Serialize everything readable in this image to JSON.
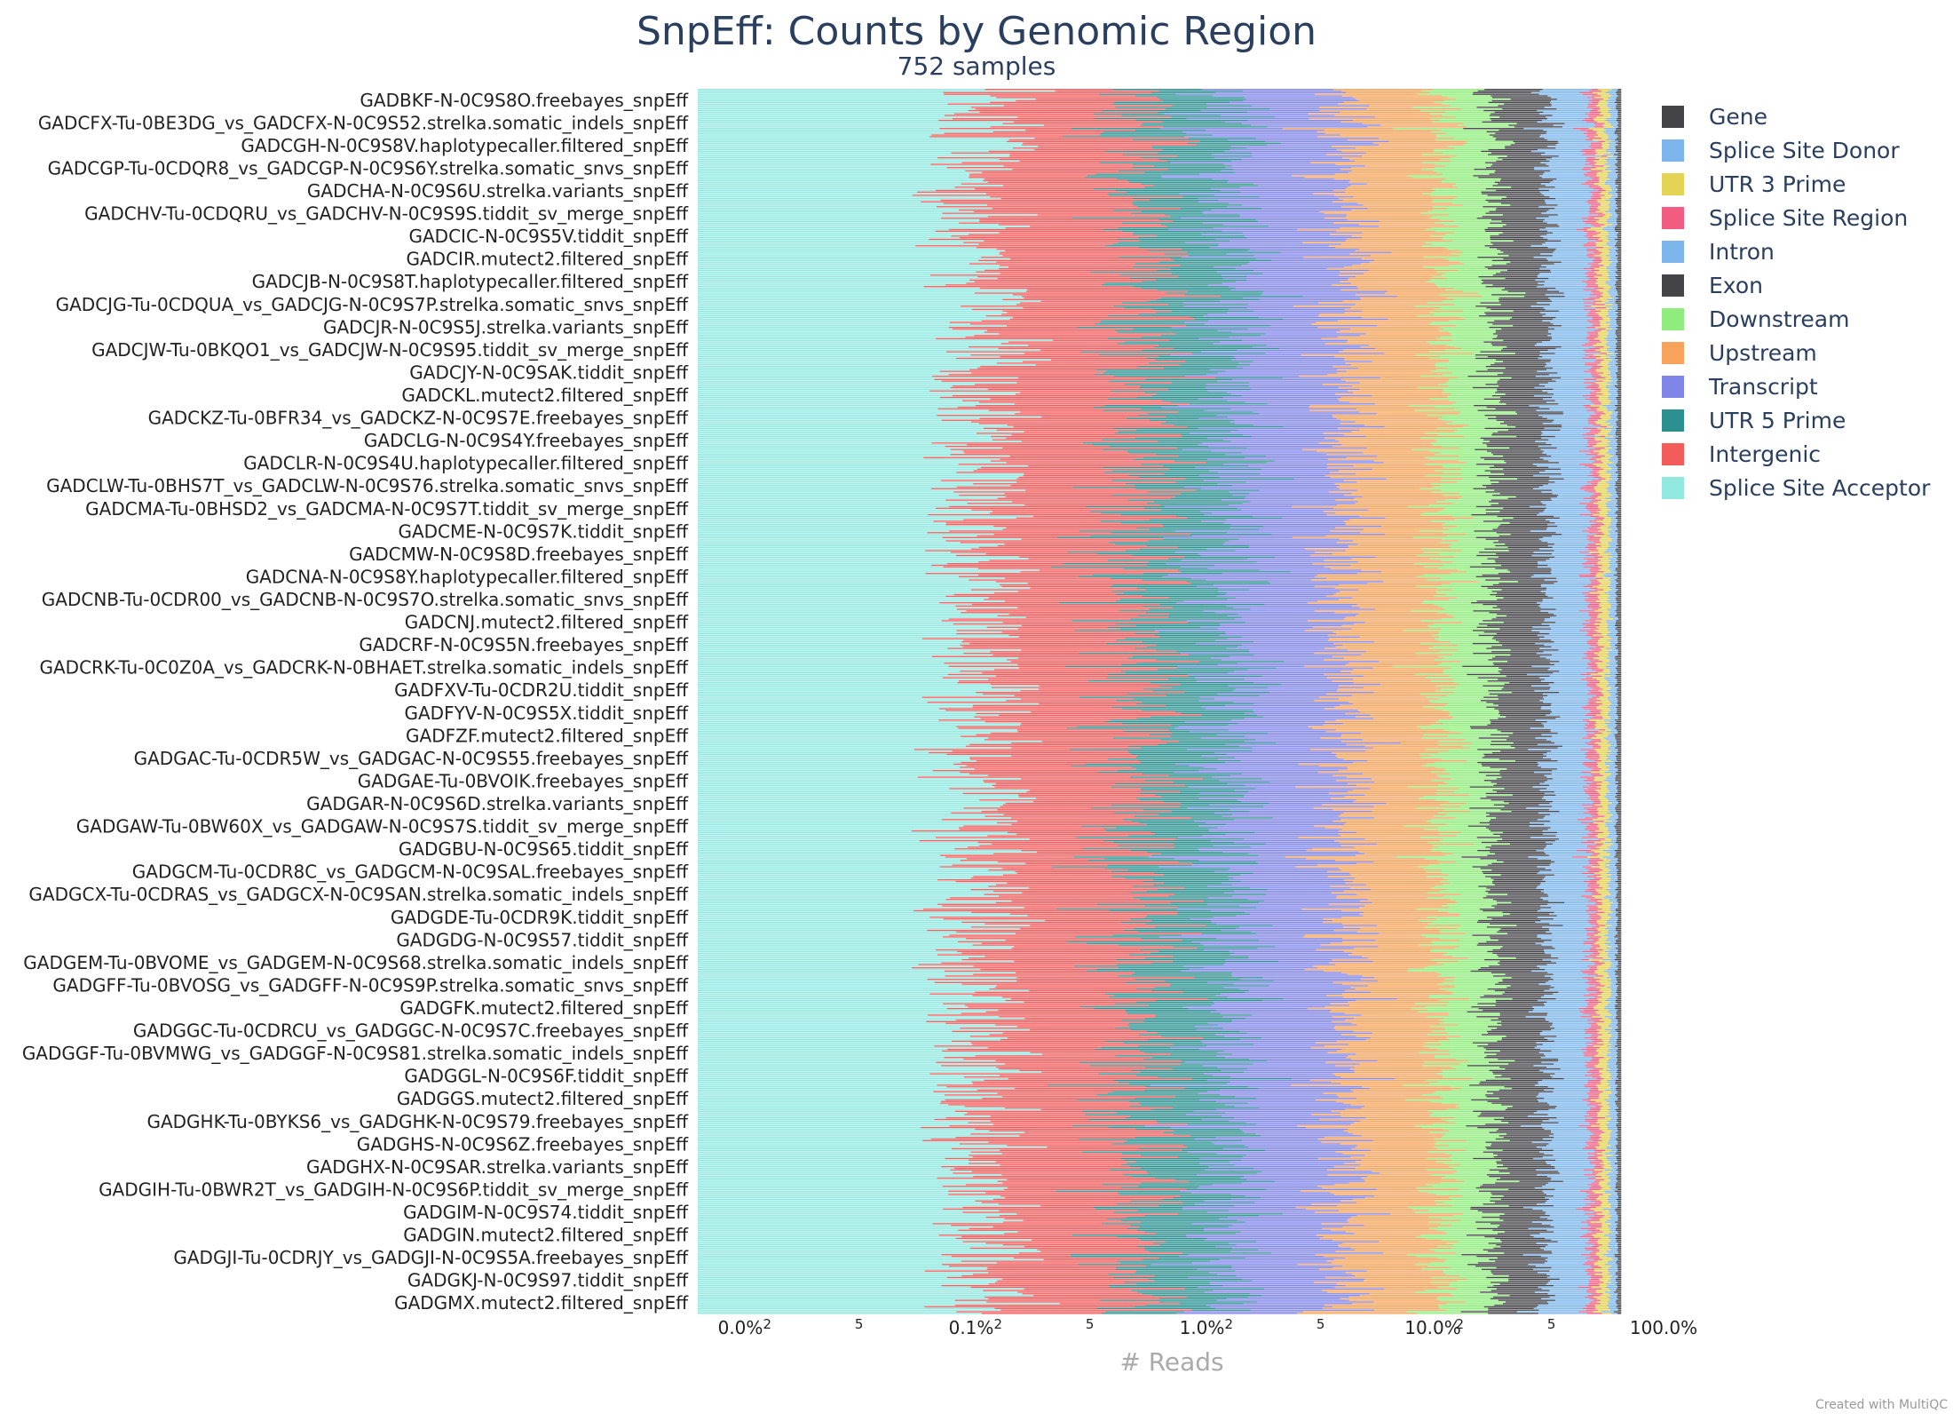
{
  "chart_data": {
    "type": "bar",
    "orientation": "horizontal",
    "stacked": true,
    "title": "SnpEff: Counts by Genomic Region",
    "subtitle": "752 samples",
    "xlabel": "# Reads",
    "x_scale": "log",
    "x_tick_labels": [
      "0.0%",
      "2",
      "5",
      "0.1%",
      "2",
      "5",
      "1.0%",
      "2",
      "5",
      "10.0%",
      "2",
      "5",
      "100.0%"
    ],
    "sample_count": 752,
    "categories": [
      "GADBKF-N-0C9S8O.freebayes_snpEff",
      "GADCFX-Tu-0BE3DG_vs_GADCFX-N-0C9S52.strelka.somatic_indels_snpEff",
      "GADCGH-N-0C9S8V.haplotypecaller.filtered_snpEff",
      "GADCGP-Tu-0CDQR8_vs_GADCGP-N-0C9S6Y.strelka.somatic_snvs_snpEff",
      "GADCHA-N-0C9S6U.strelka.variants_snpEff",
      "GADCHV-Tu-0CDQRU_vs_GADCHV-N-0C9S9S.tiddit_sv_merge_snpEff",
      "GADCIC-N-0C9S5V.tiddit_snpEff",
      "GADCIR.mutect2.filtered_snpEff",
      "GADCJB-N-0C9S8T.haplotypecaller.filtered_snpEff",
      "GADCJG-Tu-0CDQUA_vs_GADCJG-N-0C9S7P.strelka.somatic_snvs_snpEff",
      "GADCJR-N-0C9S5J.strelka.variants_snpEff",
      "GADCJW-Tu-0BKQO1_vs_GADCJW-N-0C9S95.tiddit_sv_merge_snpEff",
      "GADCJY-N-0C9SAK.tiddit_snpEff",
      "GADCKL.mutect2.filtered_snpEff",
      "GADCKZ-Tu-0BFR34_vs_GADCKZ-N-0C9S7E.freebayes_snpEff",
      "GADCLG-N-0C9S4Y.freebayes_snpEff",
      "GADCLR-N-0C9S4U.haplotypecaller.filtered_snpEff",
      "GADCLW-Tu-0BHS7T_vs_GADCLW-N-0C9S76.strelka.somatic_snvs_snpEff",
      "GADCMA-Tu-0BHSD2_vs_GADCMA-N-0C9S7T.tiddit_sv_merge_snpEff",
      "GADCME-N-0C9S7K.tiddit_snpEff",
      "GADCMW-N-0C9S8D.freebayes_snpEff",
      "GADCNA-N-0C9S8Y.haplotypecaller.filtered_snpEff",
      "GADCNB-Tu-0CDR00_vs_GADCNB-N-0C9S7O.strelka.somatic_snvs_snpEff",
      "GADCNJ.mutect2.filtered_snpEff",
      "GADCRF-N-0C9S5N.freebayes_snpEff",
      "GADCRK-Tu-0C0Z0A_vs_GADCRK-N-0BHAET.strelka.somatic_indels_snpEff",
      "GADFXV-Tu-0CDR2U.tiddit_snpEff",
      "GADFYV-N-0C9S5X.tiddit_snpEff",
      "GADFZF.mutect2.filtered_snpEff",
      "GADGAC-Tu-0CDR5W_vs_GADGAC-N-0C9S55.freebayes_snpEff",
      "GADGAE-Tu-0BVOIK.freebayes_snpEff",
      "GADGAR-N-0C9S6D.strelka.variants_snpEff",
      "GADGAW-Tu-0BW60X_vs_GADGAW-N-0C9S7S.tiddit_sv_merge_snpEff",
      "GADGBU-N-0C9S65.tiddit_snpEff",
      "GADGCM-Tu-0CDR8C_vs_GADGCM-N-0C9SAL.freebayes_snpEff",
      "GADGCX-Tu-0CDRAS_vs_GADGCX-N-0C9SAN.strelka.somatic_indels_snpEff",
      "GADGDE-Tu-0CDR9K.tiddit_snpEff",
      "GADGDG-N-0C9S57.tiddit_snpEff",
      "GADGEM-Tu-0BVOME_vs_GADGEM-N-0C9S68.strelka.somatic_indels_snpEff",
      "GADGFF-Tu-0BVOSG_vs_GADGFF-N-0C9S9P.strelka.somatic_snvs_snpEff",
      "GADGFK.mutect2.filtered_snpEff",
      "GADGGC-Tu-0CDRCU_vs_GADGGC-N-0C9S7C.freebayes_snpEff",
      "GADGGF-Tu-0BVMWG_vs_GADGGF-N-0C9S81.strelka.somatic_indels_snpEff",
      "GADGGL-N-0C9S6F.tiddit_snpEff",
      "GADGGS.mutect2.filtered_snpEff",
      "GADGHK-Tu-0BYKS6_vs_GADGHK-N-0C9S79.freebayes_snpEff",
      "GADGHS-N-0C9S6Z.freebayes_snpEff",
      "GADGHX-N-0C9SAR.strelka.variants_snpEff",
      "GADGIH-Tu-0BWR2T_vs_GADGIH-N-0C9S6P.tiddit_sv_merge_snpEff",
      "GADGIM-N-0C9S74.tiddit_snpEff",
      "GADGIN.mutect2.filtered_snpEff",
      "GADGJI-Tu-0CDRJY_vs_GADGJI-N-0C9S5A.freebayes_snpEff",
      "GADGKJ-N-0C9S97.tiddit_snpEff",
      "GADGMX.mutect2.filtered_snpEff"
    ],
    "legend_position": "right",
    "series": [
      {
        "name": "Gene",
        "color": "#434348"
      },
      {
        "name": "Splice Site Donor",
        "color": "#7cb5ec"
      },
      {
        "name": "UTR 3 Prime",
        "color": "#e4d354"
      },
      {
        "name": "Splice Site Region",
        "color": "#f15c80"
      },
      {
        "name": "Intron",
        "color": "#7cb5ec"
      },
      {
        "name": "Exon",
        "color": "#434348"
      },
      {
        "name": "Downstream",
        "color": "#90ed7d"
      },
      {
        "name": "Upstream",
        "color": "#f7a35c"
      },
      {
        "name": "Transcript",
        "color": "#8085e9"
      },
      {
        "name": "UTR 5 Prime",
        "color": "#2b908f"
      },
      {
        "name": "Intergenic",
        "color": "#f45b5b"
      },
      {
        "name": "Splice Site Acceptor",
        "color": "#91e8e1"
      }
    ]
  },
  "credit": "Created with MultiQC"
}
